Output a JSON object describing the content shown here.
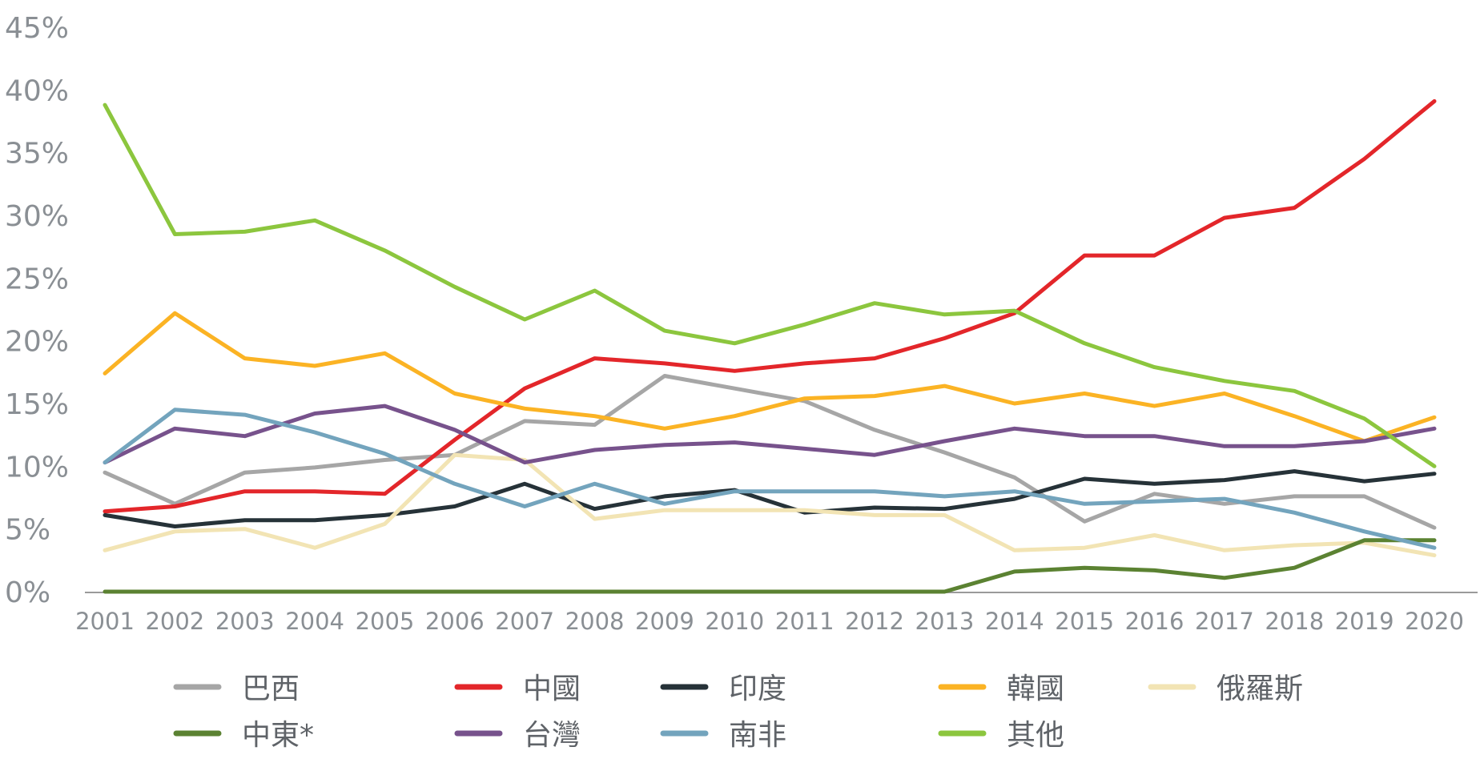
{
  "chart_data": {
    "type": "line",
    "title": "",
    "xlabel": "",
    "ylabel": "",
    "x": [
      "2001",
      "2002",
      "2003",
      "2004",
      "2005",
      "2006",
      "2007",
      "2008",
      "2009",
      "2010",
      "2011",
      "2012",
      "2013",
      "2014",
      "2015",
      "2016",
      "2017",
      "2018",
      "2019",
      "2020"
    ],
    "ylim": [
      0,
      45
    ],
    "yticks": [
      "0%",
      "5%",
      "10%",
      "15%",
      "20%",
      "25%",
      "30%",
      "35%",
      "40%",
      "45%"
    ],
    "grid": false,
    "legend_position": "bottom",
    "series": [
      {
        "name": "巴西",
        "color": "#a6a6a6",
        "values": [
          9.5,
          7.0,
          9.5,
          9.9,
          10.5,
          10.9,
          13.6,
          13.3,
          17.2,
          16.2,
          15.2,
          12.9,
          11.1,
          9.1,
          5.6,
          7.8,
          7.0,
          7.6,
          7.6,
          5.1
        ]
      },
      {
        "name": "中國",
        "color": "#e3262a",
        "values": [
          6.4,
          6.8,
          8.0,
          8.0,
          7.8,
          12.1,
          16.2,
          18.6,
          18.2,
          17.6,
          18.2,
          18.6,
          20.2,
          22.2,
          26.8,
          26.8,
          29.8,
          30.6,
          34.5,
          39.1
        ]
      },
      {
        "name": "印度",
        "color": "#263238",
        "values": [
          6.1,
          5.2,
          5.7,
          5.7,
          6.1,
          6.8,
          8.6,
          6.6,
          7.6,
          8.1,
          6.3,
          6.7,
          6.6,
          7.4,
          9.0,
          8.6,
          8.9,
          9.6,
          8.8,
          9.4
        ]
      },
      {
        "name": "韓國",
        "color": "#fbb324",
        "values": [
          17.4,
          22.2,
          18.6,
          18.0,
          19.0,
          15.8,
          14.6,
          14.0,
          13.0,
          14.0,
          15.4,
          15.6,
          16.4,
          15.0,
          15.8,
          14.8,
          15.8,
          14.0,
          12.0,
          13.9
        ]
      },
      {
        "name": "俄羅斯",
        "color": "#f2e4b4",
        "values": [
          3.3,
          4.8,
          5.0,
          3.5,
          5.4,
          10.9,
          10.5,
          5.8,
          6.5,
          6.5,
          6.5,
          6.1,
          6.1,
          3.3,
          3.5,
          4.5,
          3.3,
          3.7,
          3.9,
          2.9
        ]
      },
      {
        "name": "中東*",
        "color": "#5b8232",
        "values": [
          0.0,
          0.0,
          0.0,
          0.0,
          0.0,
          0.0,
          0.0,
          0.0,
          0.0,
          0.0,
          0.0,
          0.0,
          0.0,
          1.6,
          1.9,
          1.7,
          1.1,
          1.9,
          4.1,
          4.1
        ]
      },
      {
        "name": "台灣",
        "color": "#77528c",
        "values": [
          10.3,
          13.0,
          12.4,
          14.2,
          14.8,
          12.9,
          10.3,
          11.3,
          11.7,
          11.9,
          11.4,
          10.9,
          12.0,
          13.0,
          12.4,
          12.4,
          11.6,
          11.6,
          12.0,
          13.0
        ]
      },
      {
        "name": "南非",
        "color": "#73a4bd",
        "values": [
          10.3,
          14.5,
          14.1,
          12.7,
          11.0,
          8.6,
          6.8,
          8.6,
          7.0,
          8.0,
          8.0,
          8.0,
          7.6,
          8.0,
          7.0,
          7.2,
          7.4,
          6.3,
          4.8,
          3.5
        ]
      },
      {
        "name": "其他",
        "color": "#8cc63e",
        "values": [
          38.8,
          28.5,
          28.7,
          29.6,
          27.2,
          24.3,
          21.7,
          24.0,
          20.8,
          19.8,
          21.3,
          23.0,
          22.1,
          22.4,
          19.8,
          17.9,
          16.8,
          16.0,
          13.8,
          10.0
        ]
      }
    ]
  }
}
